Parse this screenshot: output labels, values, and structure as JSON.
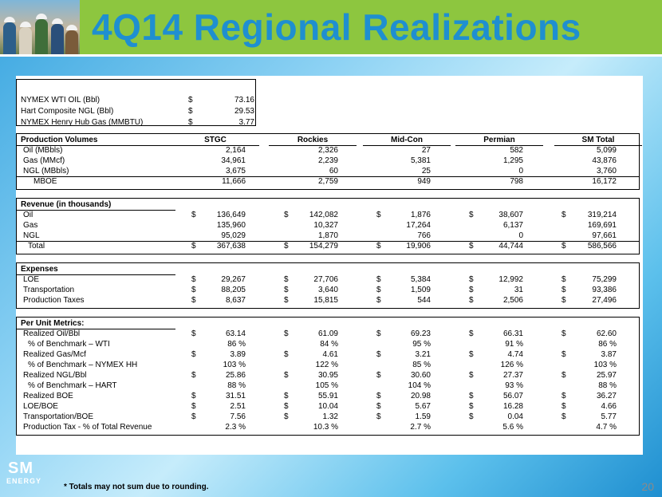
{
  "title": "4Q14 Regional Realizations",
  "benchmarks": [
    {
      "label": "NYMEX WTI OIL (Bbl)",
      "dollar": "$",
      "value": "73.16"
    },
    {
      "label": "Hart Composite NGL (Bbl)",
      "dollar": "$",
      "value": "29.53"
    },
    {
      "label": "NYMEX Henry Hub Gas (MMBTU)",
      "dollar": "$",
      "value": "3.77"
    }
  ],
  "columns": [
    "STGC",
    "Rockies",
    "Mid-Con",
    "Permian",
    "SM Total"
  ],
  "production": {
    "header": "Production Volumes",
    "rows": [
      {
        "label": "Oil (MBbls)",
        "indent": 1,
        "dollar": false,
        "values": [
          "2,164",
          "2,326",
          "27",
          "582",
          "5,099"
        ]
      },
      {
        "label": "Gas (MMcf)",
        "indent": 1,
        "dollar": false,
        "values": [
          "34,961",
          "2,239",
          "5,381",
          "1,295",
          "43,876"
        ]
      },
      {
        "label": "NGL (MBbls)",
        "indent": 1,
        "dollar": false,
        "values": [
          "3,675",
          "60",
          "25",
          "0",
          "3,760"
        ]
      },
      {
        "label": "MBOE",
        "indent": 3,
        "dollar": false,
        "values": [
          "11,666",
          "2,759",
          "949",
          "798",
          "16,172"
        ]
      }
    ]
  },
  "revenue": {
    "header": "Revenue (in thousands)",
    "rows": [
      {
        "label": "Oil",
        "indent": 1,
        "dollar": true,
        "values": [
          "136,649",
          "142,082",
          "1,876",
          "38,607",
          "319,214"
        ]
      },
      {
        "label": "Gas",
        "indent": 1,
        "dollar": false,
        "values": [
          "135,960",
          "10,327",
          "17,264",
          "6,137",
          "169,691"
        ]
      },
      {
        "label": "NGL",
        "indent": 1,
        "dollar": false,
        "values": [
          "95,029",
          "1,870",
          "766",
          "0",
          "97,661"
        ]
      },
      {
        "label": "Total",
        "indent": 2,
        "dollar": true,
        "values": [
          "367,638",
          "154,279",
          "19,906",
          "44,744",
          "586,566"
        ]
      }
    ]
  },
  "expenses": {
    "header": "Expenses",
    "rows": [
      {
        "label": "LOE",
        "indent": 1,
        "dollar": true,
        "values": [
          "29,267",
          "27,706",
          "5,384",
          "12,992",
          "75,299"
        ]
      },
      {
        "label": "Transportation",
        "indent": 1,
        "dollar": true,
        "values": [
          "88,205",
          "3,640",
          "1,509",
          "31",
          "93,386"
        ]
      },
      {
        "label": "Production Taxes",
        "indent": 1,
        "dollar": true,
        "values": [
          "8,637",
          "15,815",
          "544",
          "2,506",
          "27,496"
        ]
      }
    ]
  },
  "unit_metrics": {
    "header": "Per Unit Metrics:",
    "rows": [
      {
        "label": "Realized Oil/Bbl",
        "indent": 1,
        "dollar": true,
        "values": [
          "63.14",
          "61.09",
          "69.23",
          "66.31",
          "62.60"
        ]
      },
      {
        "label": "% of Benchmark – WTI",
        "indent": 2,
        "dollar": false,
        "values": [
          "86 %",
          "84 %",
          "95 %",
          "91 %",
          "86 %"
        ]
      },
      {
        "label": "Realized Gas/Mcf",
        "indent": 1,
        "dollar": true,
        "values": [
          "3.89",
          "4.61",
          "3.21",
          "4.74",
          "3.87"
        ]
      },
      {
        "label": "% of Benchmark – NYMEX HH",
        "indent": 2,
        "dollar": false,
        "values": [
          "103 %",
          "122 %",
          "85 %",
          "126 %",
          "103 %"
        ]
      },
      {
        "label": "Realized NGL/Bbl",
        "indent": 1,
        "dollar": true,
        "values": [
          "25.86",
          "30.95",
          "30.60",
          "27.37",
          "25.97"
        ]
      },
      {
        "label": "% of Benchmark – HART",
        "indent": 2,
        "dollar": false,
        "values": [
          "88 %",
          "105 %",
          "104 %",
          "93 %",
          "88 %"
        ]
      },
      {
        "label": "Realized BOE",
        "indent": 1,
        "dollar": true,
        "values": [
          "31.51",
          "55.91",
          "20.98",
          "56.07",
          "36.27"
        ]
      },
      {
        "label": "LOE/BOE",
        "indent": 1,
        "dollar": true,
        "values": [
          "2.51",
          "10.04",
          "5.67",
          "16.28",
          "4.66"
        ]
      },
      {
        "label": "Transportation/BOE",
        "indent": 1,
        "dollar": true,
        "values": [
          "7.56",
          "1.32",
          "1.59",
          "0.04",
          "5.77"
        ]
      },
      {
        "label": "Production Tax - % of Total Revenue",
        "indent": 1,
        "dollar": false,
        "values": [
          "2.3 %",
          "10.3 %",
          "2.7 %",
          "5.6 %",
          "4.7 %"
        ]
      }
    ]
  },
  "logo": {
    "name": "SM",
    "sub": "ENERGY"
  },
  "footnote": "* Totals may not sum due to rounding.",
  "page_number": "20"
}
